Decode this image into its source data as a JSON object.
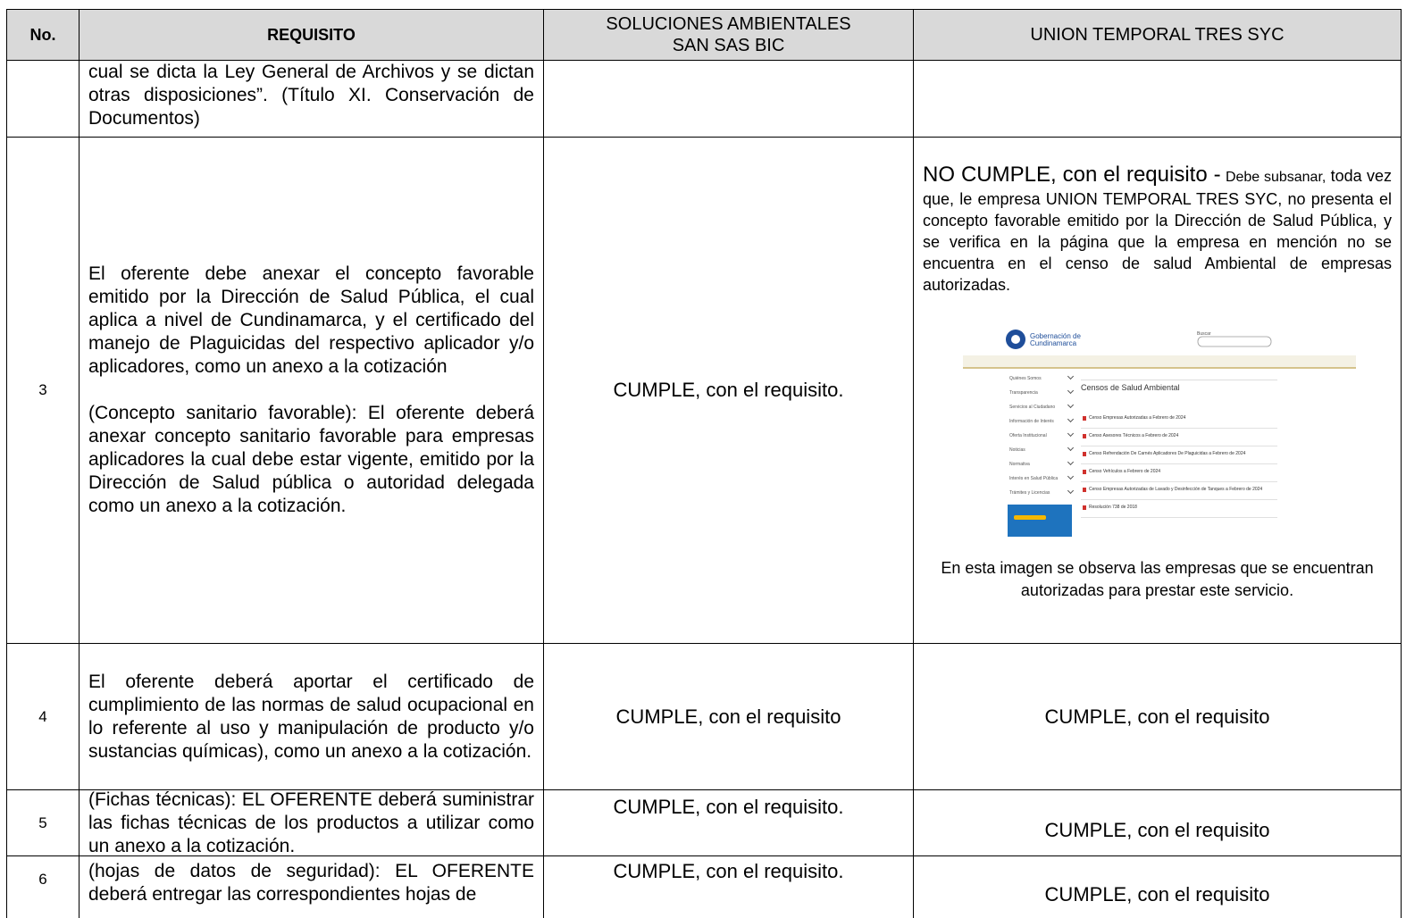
{
  "table": {
    "header": [
      "No.",
      "REQUISITO",
      "SOLUCIONES AMBIENTALES\nSAN SAS BIC",
      "UNION TEMPORAL TRES SYC"
    ],
    "rows": [
      {
        "requisito": [
          "cual se dicta la Ley General de Archivos y se dictan otras disposiciones”. (Título XI. Conservación de Documentos)"
        ]
      },
      {
        "no": "3",
        "requisito": [
          "El oferente debe anexar el concepto favorable emitido por la Dirección de Salud Pública, el cual aplica a nivel de Cundinamarca, y el certificado del manejo de Plaguicidas del respectivo aplicador y/o aplicadores, como un anexo a la cotización",
          "(Concepto sanitario favorable): El oferente deberá anexar concepto sanitario favorable para empresas aplicadores la cual debe estar vigente, emitido por la Dirección de Salud pública o autoridad delegada como un anexo a la cotización."
        ],
        "soluciones": "CUMPLE, con el requisito.",
        "union": {
          "status": "NO CUMPLE, con el requisito -",
          "lead": "Debe subsanar,",
          "detail": "toda vez que, le empresa UNION TEMPORAL TRES SYC, no presenta el concepto favorable emitido por la Dirección de Salud Pública, y se verifica en la página que la empresa en mención no se encuentra en el censo de salud Ambiental de empresas autorizadas.",
          "caption": "En esta imagen se observa las empresas que se encuentran autorizadas para prestar este servicio."
        }
      },
      {
        "no": "4",
        "requisito": [
          "El oferente deberá aportar el certificado de cumplimiento de las normas de salud ocupacional en lo referente al uso y manipulación de producto y/o sustancias químicas), como un anexo a la cotización."
        ],
        "soluciones": "CUMPLE, con el requisito",
        "union": "CUMPLE, con el requisito"
      },
      {
        "no": "5",
        "requisito": [
          "(Fichas técnicas): EL OFERENTE deberá suministrar las fichas técnicas de los productos a utilizar como un anexo a la cotización."
        ],
        "soluciones": "CUMPLE, con el requisito.",
        "union": "CUMPLE, con el requisito"
      },
      {
        "no": "6",
        "requisito": [
          "(hojas de datos de seguridad): EL OFERENTE deberá entregar las correspondientes hojas de"
        ],
        "soluciones": "CUMPLE, con el requisito.",
        "union": "CUMPLE, con el requisito"
      }
    ]
  },
  "screenshot": {
    "logo": "Gobernación de Cundinamarca",
    "search": "Buscar",
    "menu": [
      "Quiénes Somos",
      "Transparencia",
      "Servicios al Ciudadano",
      "Información de Interés",
      "Oferta Institucional",
      "Noticias",
      "Normativa",
      "Interés en Salud Pública",
      "Trámites y Licencias"
    ],
    "title": "Censos de Salud Ambiental",
    "items": [
      "Censo Empresas Autorizadas a Febrero de 2024",
      "Censo Asesores Técnicos a Febrero de 2024",
      "Censo Refrendación De Carnés Aplicadores De Plaguicidas a Febrero de 2024",
      "Censo Vehículos a Febrero de 2024",
      "Censo Empresas Autorizadas de Lavado y Desinfección de Tanques a Febrero de 2024",
      "Resolución 738 de 2018"
    ]
  }
}
